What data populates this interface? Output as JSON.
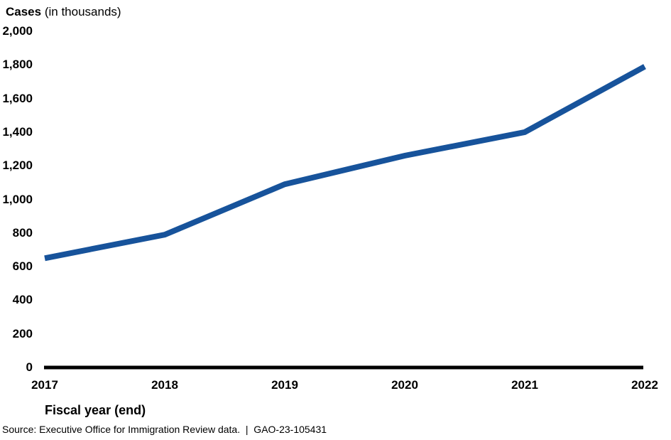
{
  "header": {
    "title_bold": "Cases",
    "title_unit": " (in thousands)"
  },
  "footer": {
    "xlabel": "Fiscal year (end)",
    "source": "Source: Executive Office for Immigration Review data.  |  GAO-23-105431"
  },
  "chart_data": {
    "type": "line",
    "title": "Cases (in thousands)",
    "xlabel": "Fiscal year (end)",
    "ylabel": "Cases (in thousands)",
    "categories": [
      "2017",
      "2018",
      "2019",
      "2020",
      "2021",
      "2022"
    ],
    "values": [
      650,
      790,
      1090,
      1260,
      1400,
      1790
    ],
    "ylim": [
      0,
      2000
    ],
    "ytick_step": 200,
    "ytick_labels": [
      "0",
      "200",
      "400",
      "600",
      "800",
      "1,000",
      "1,200",
      "1,400",
      "1,600",
      "1,800",
      "2,000"
    ],
    "grid": false,
    "legend": "none",
    "line_color": "#17539B",
    "line_width": 8,
    "axis_color": "#000000"
  }
}
